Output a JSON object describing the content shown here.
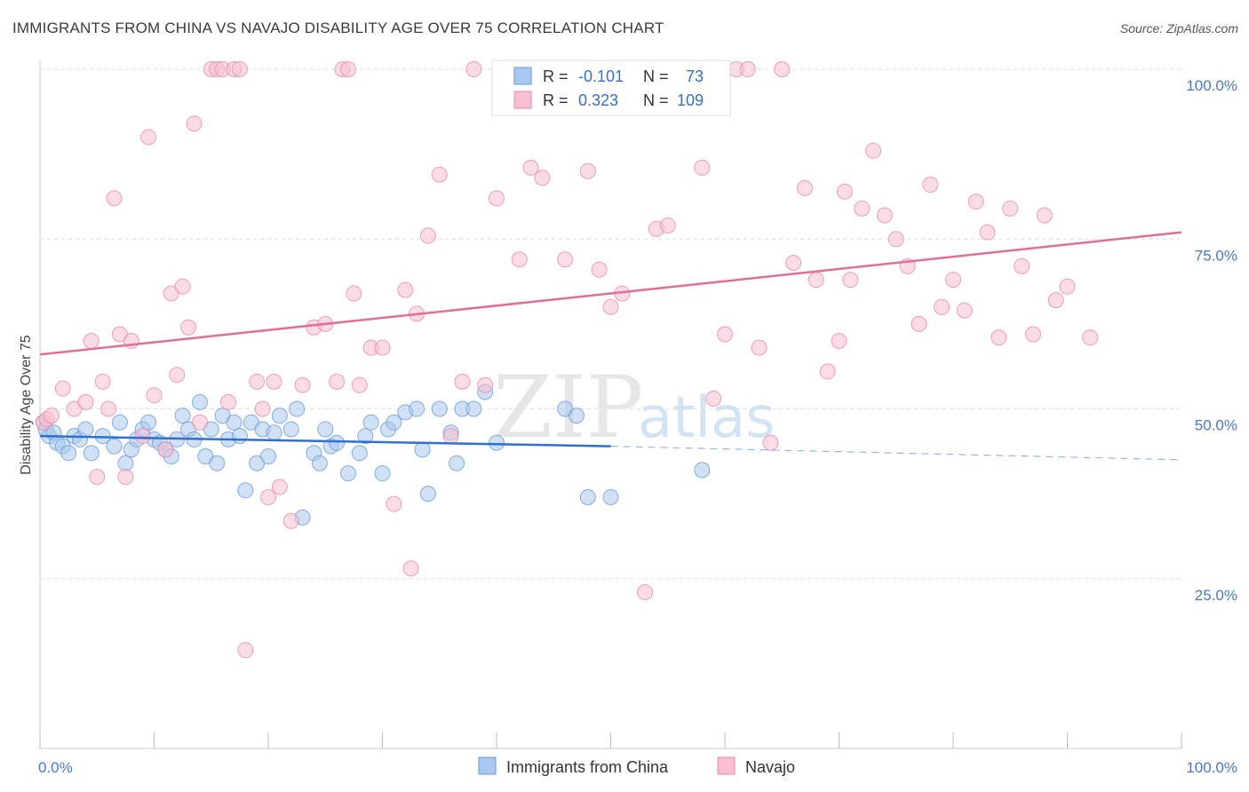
{
  "title": "IMMIGRANTS FROM CHINA VS NAVAJO DISABILITY AGE OVER 75 CORRELATION CHART",
  "source": "Source: ZipAtlas.com",
  "watermark": {
    "zip": "ZIP",
    "atlas": "atlas"
  },
  "colors": {
    "china_fill": "#a9c8ef",
    "china_stroke": "#6a9ad8",
    "china_line": "#2f6fcf",
    "navajo_fill": "#f7bfd0",
    "navajo_stroke": "#e88aa6",
    "navajo_line": "#e06e96",
    "axis_label": "#4a78c2",
    "grid": "#dddddd"
  },
  "legend": {
    "rows": [
      {
        "r_label": "R =",
        "r_value": "-0.101",
        "n_label": "N =",
        "n_value": "73"
      },
      {
        "r_label": "R =",
        "r_value": "0.323",
        "n_label": "N =",
        "n_value": "109"
      }
    ]
  },
  "bottom_legend": [
    "Immigrants from China",
    "Navajo"
  ],
  "chart_data": {
    "type": "scatter",
    "xlabel": "",
    "ylabel": "Disability Age Over 75",
    "xlim": [
      0,
      100
    ],
    "ylim": [
      0,
      100
    ],
    "x_tick_labels": [
      "0.0%",
      "100.0%"
    ],
    "y_tick_labels": [
      "25.0%",
      "50.0%",
      "75.0%",
      "100.0%"
    ],
    "y_ticks": [
      25,
      50,
      75,
      100
    ],
    "grid": true,
    "legend_position": "top-center",
    "series": [
      {
        "name": "Immigrants from China",
        "trend": {
          "x": [
            0,
            50
          ],
          "y": [
            46,
            44.5
          ],
          "dashed_to": [
            100,
            42.5
          ]
        },
        "points": [
          [
            0.3,
            48
          ],
          [
            0.5,
            47
          ],
          [
            0.8,
            46
          ],
          [
            1.2,
            46.5
          ],
          [
            1.5,
            45
          ],
          [
            2,
            44.5
          ],
          [
            2.5,
            43.5
          ],
          [
            3,
            46
          ],
          [
            3.5,
            45.5
          ],
          [
            4,
            47
          ],
          [
            4.5,
            43.5
          ],
          [
            5.5,
            46
          ],
          [
            6.5,
            44.5
          ],
          [
            7,
            48
          ],
          [
            7.5,
            42
          ],
          [
            8,
            44
          ],
          [
            8.5,
            45.5
          ],
          [
            9,
            47
          ],
          [
            9.5,
            48
          ],
          [
            10,
            45.5
          ],
          [
            10.5,
            45
          ],
          [
            11,
            44
          ],
          [
            11.5,
            43
          ],
          [
            12,
            45.5
          ],
          [
            12.5,
            49
          ],
          [
            13,
            47
          ],
          [
            13.5,
            45.5
          ],
          [
            14,
            51
          ],
          [
            14.5,
            43
          ],
          [
            15,
            47
          ],
          [
            15.5,
            42
          ],
          [
            16,
            49
          ],
          [
            16.5,
            45.5
          ],
          [
            17,
            48
          ],
          [
            17.5,
            46
          ],
          [
            18,
            38
          ],
          [
            18.5,
            48
          ],
          [
            19,
            42
          ],
          [
            19.5,
            47
          ],
          [
            20,
            43
          ],
          [
            20.5,
            46.5
          ],
          [
            21,
            49
          ],
          [
            22,
            47
          ],
          [
            22.5,
            50
          ],
          [
            23,
            34
          ],
          [
            24,
            43.5
          ],
          [
            24.5,
            42
          ],
          [
            25,
            47
          ],
          [
            25.5,
            44.5
          ],
          [
            26,
            45
          ],
          [
            27,
            40.5
          ],
          [
            28,
            43.5
          ],
          [
            28.5,
            46
          ],
          [
            29,
            48
          ],
          [
            30,
            40.5
          ],
          [
            30.5,
            47
          ],
          [
            31,
            48
          ],
          [
            32,
            49.5
          ],
          [
            33,
            50
          ],
          [
            33.5,
            44
          ],
          [
            34,
            37.5
          ],
          [
            35,
            50
          ],
          [
            36,
            46.5
          ],
          [
            36.5,
            42
          ],
          [
            37,
            50
          ],
          [
            38,
            50
          ],
          [
            39,
            52.5
          ],
          [
            40,
            45
          ],
          [
            46,
            50
          ],
          [
            47,
            49
          ],
          [
            48,
            37
          ],
          [
            50,
            37
          ],
          [
            58,
            41
          ]
        ]
      },
      {
        "name": "Navajo",
        "trend": {
          "x": [
            0,
            100
          ],
          "y": [
            58,
            76
          ]
        },
        "points": [
          [
            0.3,
            48
          ],
          [
            0.6,
            48.5
          ],
          [
            1,
            49
          ],
          [
            2,
            53
          ],
          [
            3,
            50
          ],
          [
            4,
            51
          ],
          [
            4.5,
            60
          ],
          [
            5,
            40
          ],
          [
            5.5,
            54
          ],
          [
            6,
            50
          ],
          [
            6.5,
            81
          ],
          [
            7,
            61
          ],
          [
            7.5,
            40
          ],
          [
            8,
            60
          ],
          [
            9,
            46
          ],
          [
            9.5,
            90
          ],
          [
            10,
            52
          ],
          [
            11,
            44
          ],
          [
            11.5,
            67
          ],
          [
            12,
            55
          ],
          [
            12.5,
            68
          ],
          [
            13,
            62
          ],
          [
            13.5,
            92
          ],
          [
            14,
            48
          ],
          [
            15,
            100
          ],
          [
            15.5,
            100
          ],
          [
            16,
            100
          ],
          [
            16.5,
            51
          ],
          [
            17,
            100
          ],
          [
            17.5,
            100
          ],
          [
            18,
            14.5
          ],
          [
            19,
            54
          ],
          [
            19.5,
            50
          ],
          [
            20,
            37
          ],
          [
            20.5,
            54
          ],
          [
            21,
            38.5
          ],
          [
            22,
            33.5
          ],
          [
            23,
            53.5
          ],
          [
            24,
            62
          ],
          [
            25,
            62.5
          ],
          [
            26,
            54
          ],
          [
            26.5,
            100
          ],
          [
            27,
            100
          ],
          [
            27.5,
            67
          ],
          [
            28,
            53.5
          ],
          [
            29,
            59
          ],
          [
            30,
            59
          ],
          [
            31,
            36
          ],
          [
            32,
            67.5
          ],
          [
            32.5,
            26.5
          ],
          [
            33,
            64
          ],
          [
            34,
            75.5
          ],
          [
            35,
            84.5
          ],
          [
            36,
            46
          ],
          [
            37,
            54
          ],
          [
            38,
            100
          ],
          [
            39,
            53.5
          ],
          [
            40,
            81
          ],
          [
            41,
            100
          ],
          [
            42,
            72
          ],
          [
            43,
            85.5
          ],
          [
            44,
            84
          ],
          [
            45,
            100
          ],
          [
            46,
            72
          ],
          [
            47,
            100
          ],
          [
            48,
            85
          ],
          [
            49,
            70.5
          ],
          [
            50,
            65
          ],
          [
            51,
            67
          ],
          [
            52,
            100
          ],
          [
            53,
            23
          ],
          [
            54,
            76.5
          ],
          [
            55,
            77
          ],
          [
            57,
            100
          ],
          [
            58,
            85.5
          ],
          [
            59,
            51.5
          ],
          [
            60,
            61
          ],
          [
            61,
            100
          ],
          [
            62,
            100
          ],
          [
            63,
            59
          ],
          [
            64,
            45
          ],
          [
            65,
            100
          ],
          [
            66,
            71.5
          ],
          [
            67,
            82.5
          ],
          [
            68,
            69
          ],
          [
            69,
            55.5
          ],
          [
            70,
            60
          ],
          [
            70.5,
            82
          ],
          [
            71,
            69
          ],
          [
            72,
            79.5
          ],
          [
            73,
            88
          ],
          [
            74,
            78.5
          ],
          [
            75,
            75
          ],
          [
            76,
            71
          ],
          [
            77,
            62.5
          ],
          [
            78,
            83
          ],
          [
            79,
            65
          ],
          [
            80,
            69
          ],
          [
            81,
            64.5
          ],
          [
            82,
            80.5
          ],
          [
            83,
            76
          ],
          [
            84,
            60.5
          ],
          [
            85,
            79.5
          ],
          [
            86,
            71
          ],
          [
            87,
            61
          ],
          [
            88,
            78.5
          ],
          [
            89,
            66
          ],
          [
            90,
            68
          ],
          [
            92,
            60.5
          ]
        ]
      }
    ]
  }
}
